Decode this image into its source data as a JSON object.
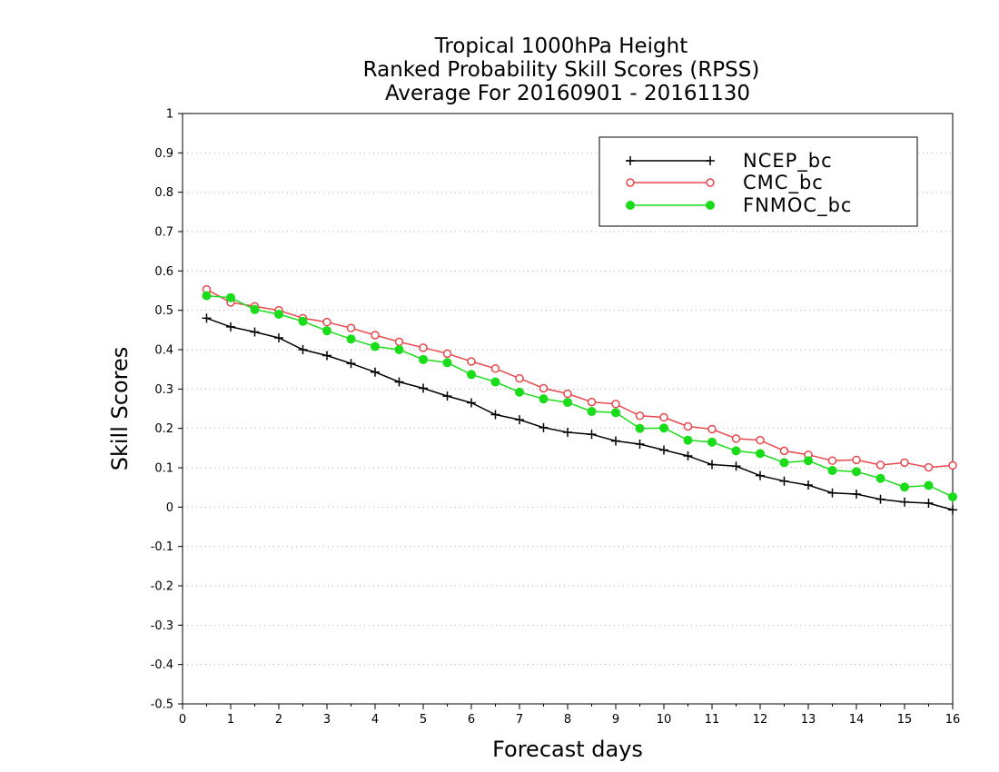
{
  "chart_data": {
    "type": "line",
    "title_lines": [
      "Tropical 1000hPa Height",
      "Ranked Probability Skill Scores (RPSS)",
      "Average For 20160901 - 20161130"
    ],
    "xlabel": "Forecast days",
    "ylabel": "Skill Scores",
    "xlim": [
      0,
      16
    ],
    "ylim": [
      -0.5,
      1
    ],
    "xticks": [
      "0",
      "1",
      "2",
      "3",
      "4",
      "5",
      "6",
      "7",
      "8",
      "9",
      "10",
      "11",
      "12",
      "13",
      "14",
      "15",
      "16"
    ],
    "yticks": [
      "-0.5",
      "-0.4",
      "-0.3",
      "-0.2",
      "-0.1",
      "0",
      "0.1",
      "0.2",
      "0.3",
      "0.4",
      "0.5",
      "0.6",
      "0.7",
      "0.8",
      "0.9",
      "1"
    ],
    "grid": "horizontal dotted",
    "legend_position": "top-right",
    "x": [
      0.5,
      1,
      1.5,
      2,
      2.5,
      3,
      3.5,
      4,
      4.5,
      5,
      5.5,
      6,
      6.5,
      7,
      7.5,
      8,
      8.5,
      9,
      9.5,
      10,
      10.5,
      11,
      11.5,
      12,
      12.5,
      13,
      13.5,
      14,
      14.5,
      15,
      15.5,
      16
    ],
    "series": [
      {
        "name": "NCEP_bc",
        "color": "#000000",
        "marker": "plus",
        "values": [
          0.48,
          0.458,
          0.445,
          0.43,
          0.4,
          0.385,
          0.365,
          0.343,
          0.318,
          0.302,
          0.282,
          0.265,
          0.235,
          0.222,
          0.202,
          0.19,
          0.185,
          0.168,
          0.16,
          0.145,
          0.13,
          0.108,
          0.104,
          0.08,
          0.066,
          0.056,
          0.036,
          0.033,
          0.02,
          0.013,
          0.01,
          -0.007
        ]
      },
      {
        "name": "CMC_bc",
        "color": "#e8474c",
        "marker": "open-circle",
        "values": [
          0.553,
          0.52,
          0.51,
          0.5,
          0.48,
          0.47,
          0.455,
          0.437,
          0.42,
          0.405,
          0.39,
          0.37,
          0.352,
          0.327,
          0.302,
          0.288,
          0.267,
          0.262,
          0.232,
          0.228,
          0.205,
          0.198,
          0.174,
          0.17,
          0.143,
          0.133,
          0.118,
          0.12,
          0.107,
          0.113,
          0.101,
          0.106
        ]
      },
      {
        "name": "FNMOC_bc",
        "color": "#1adc1a",
        "marker": "filled-circle",
        "values": [
          0.537,
          0.532,
          0.502,
          0.49,
          0.472,
          0.448,
          0.427,
          0.408,
          0.4,
          0.375,
          0.367,
          0.337,
          0.318,
          0.292,
          0.275,
          0.266,
          0.243,
          0.24,
          0.2,
          0.201,
          0.17,
          0.165,
          0.143,
          0.136,
          0.113,
          0.118,
          0.093,
          0.09,
          0.073,
          0.051,
          0.055,
          0.026
        ]
      }
    ]
  }
}
